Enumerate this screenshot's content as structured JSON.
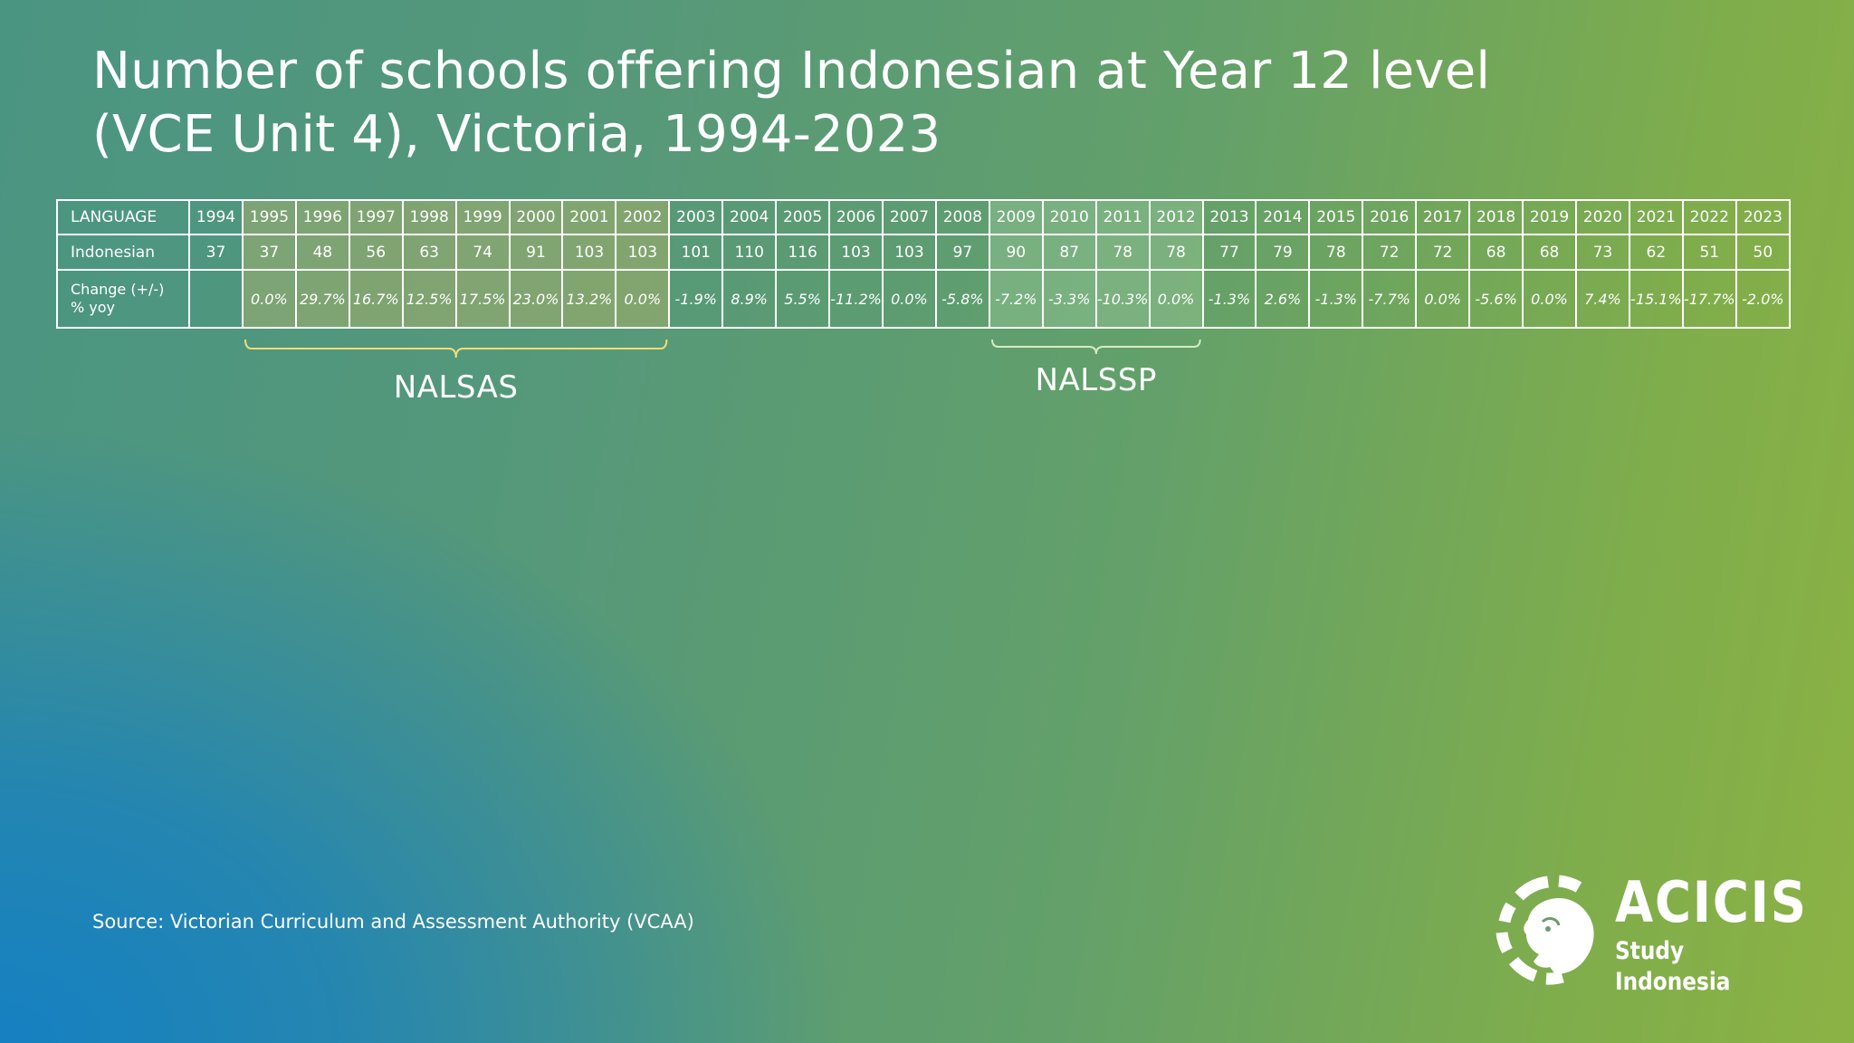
{
  "title": {
    "line1": "Number of schools offering Indonesian at Year 12 level",
    "line2": "(VCE Unit 4), Victoria, 1994-2023"
  },
  "chart_data": {
    "type": "table",
    "columns_header": "LANGUAGE",
    "years": [
      "1994",
      "1995",
      "1996",
      "1997",
      "1998",
      "1999",
      "2000",
      "2001",
      "2002",
      "2003",
      "2004",
      "2005",
      "2006",
      "2007",
      "2008",
      "2009",
      "2010",
      "2011",
      "2012",
      "2013",
      "2014",
      "2015",
      "2016",
      "2017",
      "2018",
      "2019",
      "2020",
      "2021",
      "2022",
      "2023"
    ],
    "rows": [
      {
        "label": "Indonesian",
        "values": [
          "37",
          "37",
          "48",
          "56",
          "63",
          "74",
          "91",
          "103",
          "103",
          "101",
          "110",
          "116",
          "103",
          "103",
          "97",
          "90",
          "87",
          "78",
          "78",
          "77",
          "79",
          "78",
          "72",
          "72",
          "68",
          "68",
          "73",
          "62",
          "51",
          "50"
        ]
      },
      {
        "label_line1": "Change (+/-)",
        "label_line2": "% yoy",
        "values": [
          "",
          "0.0%",
          "29.7%",
          "16.7%",
          "12.5%",
          "17.5%",
          "23.0%",
          "13.2%",
          "0.0%",
          "-1.9%",
          "8.9%",
          "5.5%",
          "-11.2%",
          "0.0%",
          "-5.8%",
          "-7.2%",
          "-3.3%",
          "-10.3%",
          "0.0%",
          "-1.3%",
          "2.6%",
          "-1.3%",
          "-7.7%",
          "0.0%",
          "-5.6%",
          "0.0%",
          "7.4%",
          "-15.1%",
          "-17.7%",
          "-2.0%"
        ]
      }
    ],
    "highlights": [
      {
        "label": "NALSAS",
        "start_year": "1995",
        "end_year": "2002",
        "color": "#f3dc7a"
      },
      {
        "label": "NALSSP",
        "start_year": "2009",
        "end_year": "2012",
        "color": "#d6ecc0"
      }
    ]
  },
  "source": "Source: Victorian Curriculum and Assessment Authority (VCAA)",
  "logo": {
    "name": "ACICIS",
    "tagline": "Study Indonesia"
  }
}
